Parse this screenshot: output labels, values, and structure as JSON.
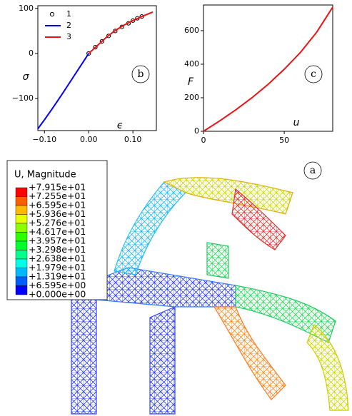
{
  "chart_data": [
    {
      "type": "line",
      "panel": "b",
      "xlabel": "ϵ",
      "ylabel": "σ",
      "xlim": [
        -0.115,
        0.153
      ],
      "ylim": [
        -171,
        106
      ],
      "xticks": [
        {
          "value": -0.1,
          "label": "−0.10"
        },
        {
          "value": 0,
          "label": "0.00"
        },
        {
          "value": 0.1,
          "label": "0.10"
        }
      ],
      "yticks": [
        {
          "value": -100,
          "label": "−100"
        },
        0,
        100
      ],
      "legend": "upper left",
      "series": [
        {
          "name": "1",
          "color": "#000000",
          "marker": "circle",
          "x": [
            0,
            0.015,
            0.03,
            0.045,
            0.06,
            0.075,
            0.09,
            0.1,
            0.11,
            0.12
          ],
          "values": [
            0,
            14,
            27,
            39,
            50,
            59,
            67,
            73,
            78,
            82
          ]
        },
        {
          "name": "2",
          "color": "#0000ff",
          "x": [
            -0.115,
            -0.1,
            -0.08,
            -0.06,
            -0.04,
            -0.02,
            0
          ],
          "values": [
            -167,
            -147,
            -119,
            -90,
            -60,
            -30,
            0
          ]
        },
        {
          "name": "3",
          "color": "#ee1111",
          "x": [
            0,
            0.02,
            0.04,
            0.06,
            0.08,
            0.1,
            0.12,
            0.145
          ],
          "values": [
            0,
            18,
            36,
            51,
            63,
            73,
            82,
            92
          ]
        }
      ]
    },
    {
      "type": "line",
      "panel": "c",
      "xlabel": "u",
      "ylabel": "F",
      "xlim": [
        0,
        80
      ],
      "ylim": [
        0,
        753
      ],
      "xticks": [
        0,
        50
      ],
      "yticks": [
        0,
        200,
        400,
        600
      ],
      "series": [
        {
          "color": "#ee1111",
          "x": [
            0,
            10,
            20,
            30,
            40,
            50,
            60,
            70,
            80
          ],
          "values": [
            0,
            62,
            128,
            200,
            280,
            370,
            470,
            590,
            740
          ]
        }
      ]
    }
  ],
  "contour_legend": {
    "title": "U, Magnitude",
    "labels": [
      "+7.915e+01",
      "+7.255e+01",
      "+6.595e+01",
      "+5.936e+01",
      "+5.276e+01",
      "+4.617e+01",
      "+3.957e+01",
      "+3.298e+01",
      "+2.638e+01",
      "+1.979e+01",
      "+1.319e+01",
      "+6.595e+00",
      "+0.000e+00"
    ],
    "colors": [
      "#ff0000",
      "#ff5d00",
      "#ffb900",
      "#e8ff00",
      "#8bff00",
      "#2eff00",
      "#00ff2e",
      "#00ff8b",
      "#00ffe8",
      "#00b9ff",
      "#005dff",
      "#0000ff"
    ]
  },
  "panel_label": "a"
}
